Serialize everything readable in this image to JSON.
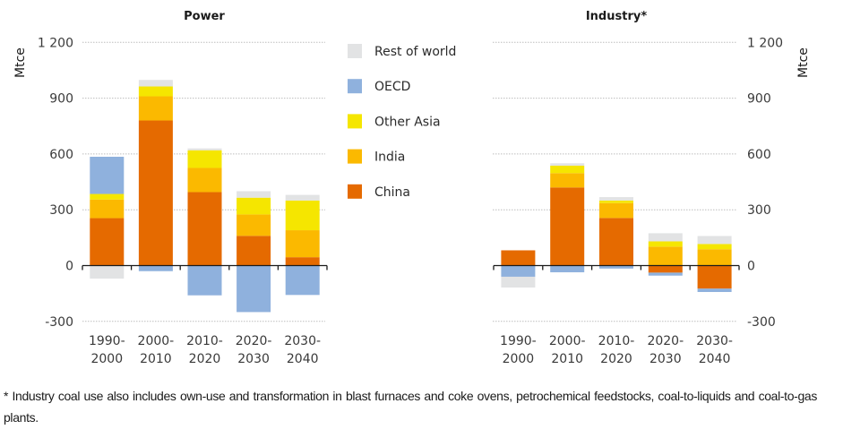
{
  "chart_data": [
    {
      "type": "bar",
      "stacked": true,
      "title": "Power",
      "ylabel": "Mtce",
      "yaxis_side": "left",
      "ylim": [
        -300,
        1200
      ],
      "yticks": [
        -300,
        0,
        300,
        600,
        900,
        1200
      ],
      "ytick_labels": [
        "-300",
        "0",
        "300",
        "600",
        "900",
        "1 200"
      ],
      "grid": true,
      "categories": [
        "1990-2000",
        "2000-2010",
        "2010-2020",
        "2020-2030",
        "2030-2040"
      ],
      "category_lines": [
        [
          "1990-",
          "2000"
        ],
        [
          "2000-",
          "2010"
        ],
        [
          "2010-",
          "2020"
        ],
        [
          "2020-",
          "2030"
        ],
        [
          "2030-",
          "2040"
        ]
      ],
      "series": [
        {
          "name": "China",
          "values": [
            255,
            780,
            395,
            160,
            45
          ]
        },
        {
          "name": "India",
          "values": [
            100,
            130,
            130,
            115,
            145
          ]
        },
        {
          "name": "Other Asia",
          "values": [
            30,
            53,
            95,
            90,
            160
          ]
        },
        {
          "name": "OECD",
          "values": [
            200,
            -30,
            -160,
            -250,
            -158
          ]
        },
        {
          "name": "Rest of world",
          "values": [
            -70,
            35,
            10,
            35,
            30
          ]
        }
      ]
    },
    {
      "type": "bar",
      "stacked": true,
      "title": "Industry*",
      "ylabel": "Mtce",
      "yaxis_side": "right",
      "ylim": [
        -300,
        1200
      ],
      "yticks": [
        -300,
        0,
        300,
        600,
        900,
        1200
      ],
      "ytick_labels": [
        "-300",
        "0",
        "300",
        "600",
        "900",
        "1 200"
      ],
      "grid": true,
      "categories": [
        "1990-2000",
        "2000-2010",
        "2010-2020",
        "2020-2030",
        "2030-2040"
      ],
      "category_lines": [
        [
          "1990-",
          "2000"
        ],
        [
          "2000-",
          "2010"
        ],
        [
          "2010-",
          "2020"
        ],
        [
          "2020-",
          "2030"
        ],
        [
          "2030-",
          "2040"
        ]
      ],
      "series": [
        {
          "name": "China",
          "values": [
            82,
            420,
            256,
            -38,
            -124
          ]
        },
        {
          "name": "India",
          "values": [
            0,
            77,
            80,
            102,
            88
          ]
        },
        {
          "name": "Other Asia",
          "values": [
            0,
            40,
            14,
            28,
            28
          ]
        },
        {
          "name": "OECD",
          "values": [
            -60,
            -36,
            -16,
            -16,
            -18
          ]
        },
        {
          "name": "Rest of world",
          "values": [
            -58,
            13,
            18,
            44,
            43
          ]
        }
      ]
    }
  ],
  "legend": {
    "placement": "center",
    "items": [
      {
        "name": "Rest of world",
        "color": "#e2e3e4"
      },
      {
        "name": "OECD",
        "color": "#8fb1dd"
      },
      {
        "name": "Other Asia",
        "color": "#f5e600"
      },
      {
        "name": "India",
        "color": "#fbb900"
      },
      {
        "name": "China",
        "color": "#e56a00"
      }
    ]
  },
  "colors": {
    "China": "#e56a00",
    "India": "#fbb900",
    "Other Asia": "#f5e600",
    "OECD": "#8fb1dd",
    "Rest of world": "#e2e3e4"
  },
  "footnote": "* Industry coal use also includes own-use and transformation in blast furnaces and coke ovens, petrochemical feedstocks, coal-to-liquids and coal-to-gas plants."
}
